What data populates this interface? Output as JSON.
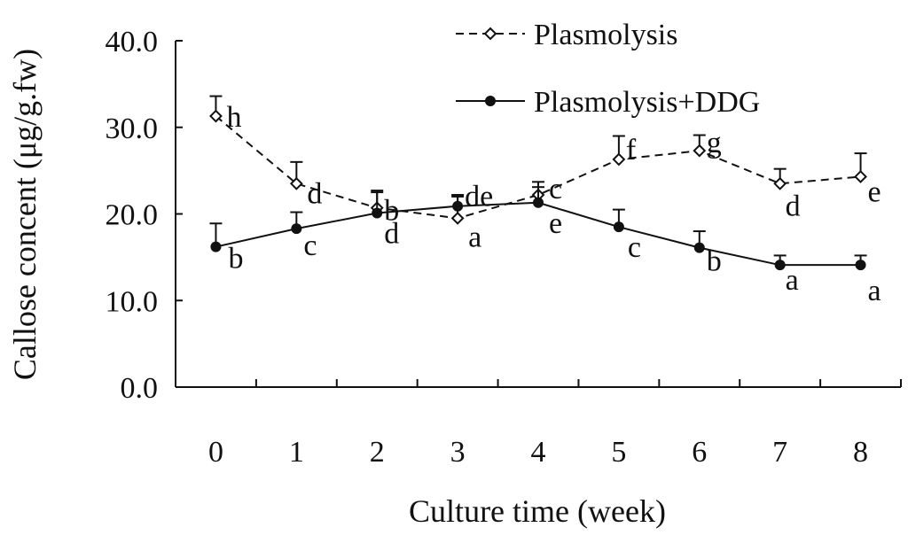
{
  "chart_data": {
    "type": "line",
    "title": "",
    "xlabel": "Culture time (week)",
    "ylabel": "Callose concent (μg/g.fw)",
    "x": [
      0,
      1,
      2,
      3,
      4,
      5,
      6,
      7,
      8
    ],
    "x_tick_labels": [
      "0",
      "1",
      "2",
      "3",
      "4",
      "5",
      "6",
      "7",
      "8"
    ],
    "ylim": [
      0,
      40
    ],
    "y_ticks": [
      0,
      10,
      20,
      30,
      40
    ],
    "y_tick_labels": [
      "0.0",
      "10.0",
      "20.0",
      "30.0",
      "40.0"
    ],
    "grid": false,
    "legend_position": "top-right",
    "series": [
      {
        "name": "Plasmolysis",
        "line_style": "dashed",
        "marker": "open-diamond",
        "values": [
          31.3,
          23.5,
          20.7,
          19.5,
          22.2,
          26.3,
          27.3,
          23.5,
          24.3
        ],
        "error": [
          2.3,
          2.5,
          1.8,
          2.5,
          1.5,
          2.7,
          1.8,
          1.7,
          2.7
        ],
        "significance": [
          "h",
          "d",
          "b",
          "a",
          "c",
          "f",
          "g",
          "d",
          "e"
        ]
      },
      {
        "name": "Plasmolysis+DDG",
        "line_style": "solid",
        "marker": "filled-circle",
        "values": [
          16.2,
          18.3,
          20.1,
          20.9,
          21.3,
          18.5,
          16.1,
          14.1,
          14.1
        ],
        "error": [
          2.7,
          1.9,
          2.6,
          1.3,
          1.8,
          2.0,
          1.9,
          1.1,
          1.1
        ],
        "significance": [
          "b",
          "c",
          "d",
          "de",
          "e",
          "c",
          "b",
          "a",
          "a"
        ]
      }
    ]
  }
}
